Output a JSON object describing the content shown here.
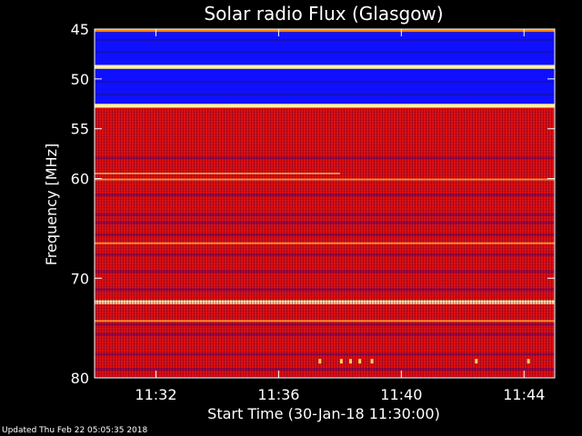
{
  "chart_data": {
    "type": "heatmap",
    "title": "Solar radio Flux (Glasgow)",
    "xlabel": "Start Time (30-Jan-18 11:30:00)",
    "ylabel": "Frequency [MHz]",
    "x_ticks": [
      "11:32",
      "11:36",
      "11:40",
      "11:44"
    ],
    "x_tick_values": [
      2,
      6,
      10,
      14
    ],
    "xlim": [
      0,
      15
    ],
    "x_units": "minutes after 11:30:00",
    "y_ticks": [
      45,
      50,
      55,
      60,
      70,
      80
    ],
    "ylim": [
      45,
      80
    ],
    "y_direction": "down",
    "intensity_scale": "blue (low) to red to yellow/white (high)",
    "bands": [
      {
        "from": 45.0,
        "to": 45.3,
        "level": "high"
      },
      {
        "from": 45.3,
        "to": 48.6,
        "level": "low"
      },
      {
        "from": 48.6,
        "to": 49.0,
        "level": "very-high"
      },
      {
        "from": 49.0,
        "to": 52.5,
        "level": "low"
      },
      {
        "from": 52.5,
        "to": 52.9,
        "level": "very-high"
      },
      {
        "from": 52.9,
        "to": 80.0,
        "level": "medium"
      },
      {
        "from": 72.2,
        "to": 72.6,
        "level": "very-high"
      }
    ]
  },
  "footer": "Updated Thu Feb 22 05:05:35 2018",
  "colors": {
    "background": "#000000",
    "low": "#1010ff",
    "medium": "#e01010",
    "high": "#ff8000",
    "very_high": "#fff0a0"
  }
}
